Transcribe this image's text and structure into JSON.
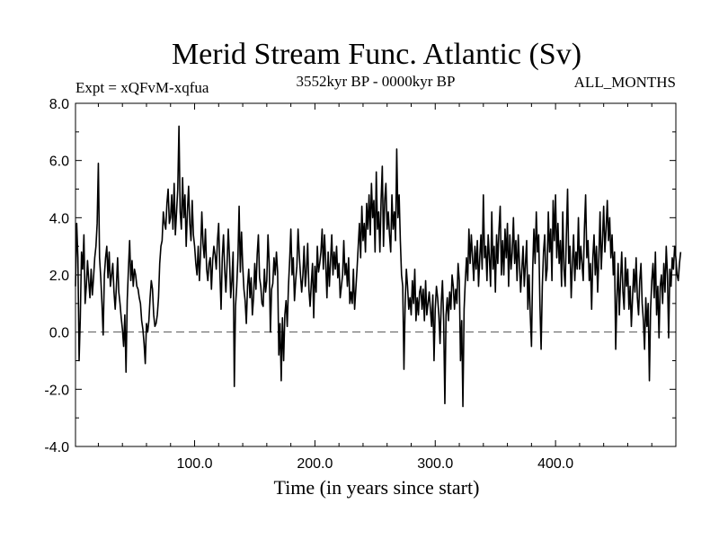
{
  "chart_data": {
    "type": "line",
    "title": "Merid Stream Func. Atlantic (Sv)",
    "subtitle_left": "Expt = xQFvM-xqfua",
    "subtitle_center": "3552kyr BP - 0000kyr BP",
    "subtitle_right": "ALL_MONTHS",
    "xlabel": "Time (in years since start)",
    "ylabel": "",
    "xlim": [
      1,
      500
    ],
    "ylim": [
      -4.0,
      8.0
    ],
    "x_ticks": [
      100,
      200,
      300,
      400
    ],
    "x_tick_labels": [
      "100.0",
      "200.0",
      "300.0",
      "400.0"
    ],
    "y_ticks": [
      -4,
      -2,
      0,
      2,
      4,
      6,
      8
    ],
    "y_tick_labels": [
      "-4.0",
      "-2.0",
      "0.0",
      "2.0",
      "4.0",
      "6.0",
      "8.0"
    ],
    "reference_line": {
      "y": 0.0,
      "style": "dashed"
    },
    "series": [
      {
        "name": "Merid Stream Func. Atlantic",
        "x_start": 1,
        "x_step": 1,
        "values": [
          1.6,
          3.8,
          2.6,
          -1.0,
          0.5,
          2.8,
          2.2,
          3.4,
          1.0,
          1.6,
          2.5,
          1.8,
          1.2,
          2.2,
          1.3,
          1.9,
          2.6,
          3.0,
          3.8,
          5.9,
          2.6,
          1.9,
          1.0,
          -0.1,
          2.0,
          2.6,
          3.0,
          1.9,
          2.8,
          1.6,
          2.0,
          2.4,
          1.4,
          0.8,
          1.6,
          2.6,
          1.4,
          1.0,
          0.5,
          0.1,
          -0.5,
          0.6,
          -1.4,
          1.1,
          2.2,
          3.2,
          1.8,
          2.5,
          1.6,
          2.2,
          2.0,
          1.6,
          1.5,
          1.2,
          1.0,
          0.4,
          0.1,
          -0.4,
          -1.1,
          0.3,
          0.0,
          0.4,
          1.2,
          1.8,
          1.5,
          0.6,
          0.2,
          0.3,
          0.6,
          1.2,
          2.4,
          3.0,
          3.2,
          4.2,
          3.8,
          3.6,
          4.5,
          5.0,
          3.8,
          4.0,
          4.8,
          3.6,
          5.2,
          3.4,
          4.2,
          5.0,
          7.2,
          4.2,
          3.6,
          5.4,
          4.0,
          4.8,
          3.0,
          4.2,
          5.1,
          3.8,
          3.2,
          4.6,
          3.4,
          3.0,
          2.4,
          2.0,
          3.0,
          1.8,
          2.8,
          4.2,
          3.1,
          2.6,
          3.6,
          2.2,
          1.8,
          2.4,
          2.6,
          1.5,
          2.5,
          3.0,
          2.7,
          2.2,
          3.2,
          3.8,
          2.1,
          0.8,
          2.6,
          3.4,
          2.2,
          1.4,
          2.4,
          3.6,
          2.6,
          1.2,
          1.8,
          2.8,
          -1.9,
          0.9,
          1.6,
          2.6,
          4.4,
          2.1,
          3.5,
          2.3,
          1.5,
          1.1,
          0.3,
          1.6,
          2.2,
          1.2,
          1.9,
          0.6,
          1.2,
          2.4,
          1.5,
          2.7,
          3.4,
          1.9,
          1.6,
          1.0,
          0.9,
          2.2,
          1.4,
          1.8,
          3.4,
          2.4,
          0.0,
          1.5,
          1.7,
          2.6,
          2.0,
          2.8,
          2.1,
          -0.8,
          0.3,
          -1.7,
          0.5,
          -1.0,
          0.6,
          1.1,
          0.2,
          1.6,
          2.5,
          3.6,
          2.0,
          2.6,
          1.1,
          1.8,
          2.3,
          3.6,
          2.7,
          2.0,
          1.4,
          2.0,
          3.0,
          1.6,
          2.2,
          3.1,
          1.5,
          0.9,
          1.7,
          2.4,
          0.5,
          2.3,
          1.4,
          3.0,
          2.1,
          2.4,
          2.8,
          3.6,
          2.2,
          3.4,
          2.4,
          1.2,
          2.8,
          1.6,
          2.5,
          3.4,
          2.0,
          2.8,
          2.2,
          3.0,
          1.9,
          2.4,
          1.2,
          1.6,
          2.0,
          3.2,
          2.0,
          2.4,
          1.6,
          2.6,
          1.0,
          1.4,
          1.0,
          2.2,
          0.8,
          1.5,
          2.2,
          3.0,
          3.8,
          2.6,
          4.4,
          3.2,
          3.8,
          2.8,
          4.5,
          3.6,
          4.8,
          3.4,
          5.2,
          4.0,
          4.6,
          2.8,
          5.6,
          3.6,
          4.2,
          2.8,
          4.6,
          5.8,
          3.0,
          4.6,
          5.2,
          3.6,
          4.2,
          3.4,
          2.8,
          4.8,
          3.6,
          4.2,
          3.2,
          6.4,
          4.0,
          4.8,
          3.2,
          2.0,
          1.6,
          -1.3,
          1.0,
          2.2,
          1.6,
          0.8,
          1.2,
          0.6,
          1.8,
          1.0,
          2.2,
          0.4,
          1.2,
          0.6,
          1.4,
          1.6,
          0.8,
          1.5,
          0.4,
          1.8,
          0.6,
          1.0,
          1.4,
          0.8,
          0.2,
          1.3,
          -1.0,
          0.8,
          1.6,
          1.2,
          0.6,
          -0.4,
          1.0,
          1.8,
          0.4,
          -2.5,
          0.6,
          1.2,
          0.4,
          1.4,
          0.8,
          2.0,
          1.6,
          0.8,
          1.5,
          1.0,
          2.4,
          1.8,
          -1.0,
          0.4,
          -2.6,
          0.8,
          1.8,
          2.6,
          1.8,
          3.6,
          2.4,
          3.4,
          2.6,
          1.8,
          3.0,
          2.2,
          3.2,
          1.6,
          2.6,
          3.4,
          2.2,
          4.8,
          2.6,
          3.0,
          1.8,
          3.4,
          2.6,
          1.6,
          4.2,
          2.2,
          3.0,
          1.4,
          3.4,
          2.4,
          3.6,
          4.4,
          2.0,
          3.2,
          2.0,
          3.6,
          2.6,
          3.8,
          1.6,
          3.4,
          2.2,
          2.8,
          4.0,
          2.4,
          3.2,
          1.8,
          3.4,
          2.4,
          1.4,
          2.2,
          3.0,
          1.6,
          2.4,
          3.2,
          0.8,
          2.0,
          0.6,
          -0.5,
          2.2,
          3.6,
          2.4,
          4.2,
          2.8,
          3.4,
          1.0,
          -0.6,
          1.6,
          2.8,
          3.4,
          1.8,
          2.2,
          4.2,
          2.8,
          3.6,
          1.8,
          4.6,
          3.2,
          4.8,
          2.6,
          3.8,
          2.4,
          3.2,
          1.6,
          4.2,
          2.2,
          1.6,
          3.4,
          5.0,
          2.4,
          3.0,
          1.2,
          2.4,
          3.4,
          1.8,
          2.8,
          2.2,
          4.0,
          2.2,
          3.0,
          2.4,
          1.8,
          3.6,
          4.8,
          2.6,
          3.2,
          1.8,
          2.4,
          0.8,
          2.6,
          3.4,
          2.0,
          3.0,
          1.4,
          2.6,
          4.2,
          2.2,
          3.2,
          4.4,
          2.8,
          3.6,
          4.6,
          3.2,
          4.0,
          2.6,
          3.4,
          2.0,
          2.8,
          -0.6,
          1.2,
          2.4,
          0.6,
          1.8,
          2.8,
          1.4,
          0.8,
          2.6,
          1.6,
          2.2,
          0.8,
          1.6,
          0.2,
          1.2,
          2.2,
          1.4,
          2.6,
          1.2,
          0.6,
          1.8,
          2.4,
          1.0,
          0.4,
          -0.6,
          1.2,
          0.2,
          1.0,
          -1.7,
          0.8,
          1.8,
          2.4,
          1.2,
          2.8,
          0.6,
          1.6,
          -0.2,
          1.6,
          2.0,
          1.0,
          2.4,
          1.4,
          3.0,
          2.0,
          -0.2,
          2.2,
          1.6,
          2.6,
          2.2,
          3.0,
          2.6,
          2.0,
          1.8,
          2.4,
          2.8
        ]
      }
    ]
  }
}
